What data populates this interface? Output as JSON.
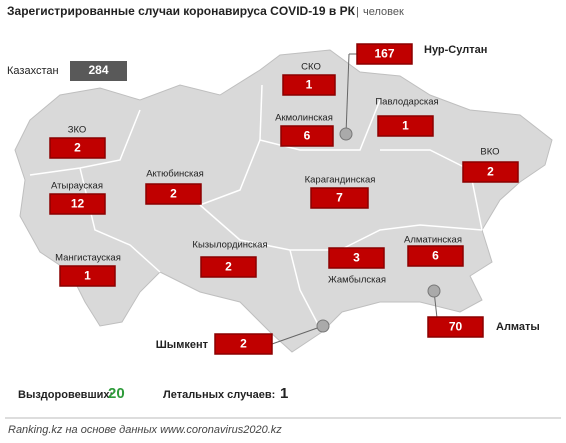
{
  "header": {
    "title": "Зарегистрированные случаи коронавируса COVID-19 в РК",
    "unit": "человек"
  },
  "total": {
    "label": "Казахстан",
    "value": 284
  },
  "regions": [
    {
      "name": "Нур-Султан",
      "value": 167
    },
    {
      "name": "СКО",
      "value": 1
    },
    {
      "name": "Акмолинская",
      "value": 6
    },
    {
      "name": "Павлодарская",
      "value": 1
    },
    {
      "name": "ЗКО",
      "value": 2
    },
    {
      "name": "ВКО",
      "value": 2
    },
    {
      "name": "Актюбинская",
      "value": 2
    },
    {
      "name": "Карагандинская",
      "value": 7
    },
    {
      "name": "Атырауская",
      "value": 12
    },
    {
      "name": "Кызылординская",
      "value": 2
    },
    {
      "name": "Мангистауская",
      "value": 1
    },
    {
      "name": "Жамбылская",
      "value": 3
    },
    {
      "name": "Алматинская",
      "value": 6
    },
    {
      "name": "Алматы",
      "value": 70
    },
    {
      "name": "Шымкент",
      "value": 2
    }
  ],
  "footer": {
    "recovered_label": "Выздоровевших:",
    "recovered": 20,
    "deaths_label": "Летальных случаев:",
    "deaths": 1,
    "source": "Ranking.kz на основе данных www.coronavirus2020.kz"
  }
}
